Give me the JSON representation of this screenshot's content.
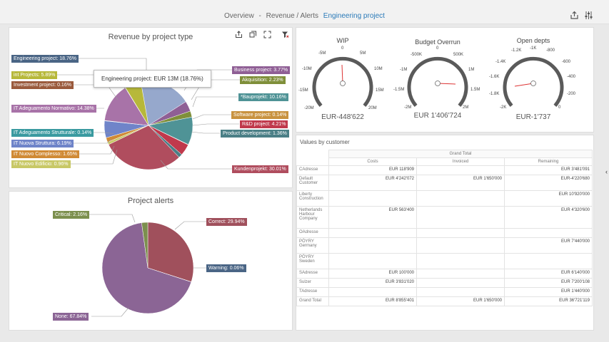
{
  "header": {
    "breadcrumb_1": "Overview",
    "breadcrumb_2": "Revenue / Alerts",
    "breadcrumb_active": "Engineering project",
    "separator": "-"
  },
  "revenue_chart": {
    "title": "Revenue by project type",
    "tooltip": "Engineering project: EUR 13M (18.76%)",
    "labels": {
      "engineering": "Engineering project: 18.76%",
      "int": "int Projects: 5.89%",
      "investment": "Investment project: 0.16%",
      "adeguamento_normativo": "IT Adeguamento Normativo: 14.38%",
      "adeguamento_strutturale": "IT Adeguamento Strutturale: 0.14%",
      "nuova_struttura": "IT Nuova Struttura: 6.19%",
      "nuovo_complesso": "IT Nuovo Complesso: 1.65%",
      "nuovo_edificio": "IT Nuovo Edificio: 0.96%",
      "business": "Business project: 3.77%",
      "akquisition": "Akquisition: 2.23%",
      "bauprojekt": "*Bauprojekt: 10.16%",
      "software": "Software project: 0.14%",
      "rnd": "R&D project: 4.21%",
      "product_dev": "Product development: 1.36%",
      "kunden": "Kundenprojekt: 30.01%"
    }
  },
  "alerts_chart": {
    "title": "Project alerts",
    "labels": {
      "critical": "Critical: 2.16%",
      "correct": "Correct: 29.94%",
      "warning": "Warning: 0.06%",
      "none": "None: 67.84%"
    }
  },
  "gauges": {
    "wip": {
      "title": "WIP",
      "value": "EUR-448'622",
      "ticks": {
        "t0": "-20M",
        "t1": "-15M",
        "t2": "-10M",
        "t3": "-5M",
        "t4": "0",
        "t5": "5M",
        "t6": "10M",
        "t7": "15M",
        "t8": "20M"
      }
    },
    "budget": {
      "title": "Budget Overrun",
      "value": "EUR 1'406'724",
      "ticks": {
        "t0": "-2M",
        "t1": "-1.5M",
        "t2": "-1M",
        "t3": "-500K",
        "t4": "0",
        "t5": "500K",
        "t6": "1M",
        "t7": "1.5M",
        "t8": "2M"
      }
    },
    "open": {
      "title": "Open depts",
      "value": "EUR-1'737",
      "ticks": {
        "t0": "-2K",
        "t1": "-1.8K",
        "t2": "-1.6K",
        "t3": "-1.4K",
        "t4": "-1.2K",
        "t5": "-1K",
        "t6": "-800",
        "t7": "-600",
        "t8": "-400",
        "t9": "-200",
        "t10": "0"
      }
    }
  },
  "values_table": {
    "title": "Values by customer",
    "grand_total_header": "Grand Total",
    "col_costs": "Costs",
    "col_invoiced": "Invoiced",
    "col_remaining": "Remaining",
    "rows": [
      {
        "name": "CAdresse",
        "costs": "EUR 118'909",
        "invoiced": "",
        "remaining": "EUR 3'481'091"
      },
      {
        "name": "Default Customer",
        "costs": "EUR 4'242'072",
        "invoiced": "EUR 1'650'000",
        "remaining": "EUR-4'220'680"
      },
      {
        "name": "Liberty Construction",
        "costs": "",
        "invoiced": "",
        "remaining": "EUR 10'920'000"
      },
      {
        "name": "Netherlands Harbour Company",
        "costs": "EUR 563'400",
        "invoiced": "",
        "remaining": "EUR 4'320'600"
      },
      {
        "name": "OAdresse",
        "costs": "",
        "invoiced": "",
        "remaining": ""
      },
      {
        "name": "PÖYRY Germany",
        "costs": "",
        "invoiced": "",
        "remaining": "EUR 7'440'000"
      },
      {
        "name": "PÖYRY Sweden",
        "costs": "",
        "invoiced": "",
        "remaining": ""
      },
      {
        "name": "SAdresse",
        "costs": "EUR 100'000",
        "invoiced": "",
        "remaining": "EUR 6'140'000"
      },
      {
        "name": "Sulzer",
        "costs": "EUR 3'831'020",
        "invoiced": "",
        "remaining": "EUR 7'200'108"
      },
      {
        "name": "TAdresse",
        "costs": "",
        "invoiced": "",
        "remaining": "EUR 1'440'000"
      },
      {
        "name": "Grand Total",
        "costs": "EUR 8'855'401",
        "invoiced": "EUR 1'650'000",
        "remaining": "EUR 36'721'119"
      }
    ]
  },
  "colors": {
    "engineering": "#96a8cc",
    "int": "#b7b83a",
    "investment": "#9a5a3c",
    "adeguamento_normativo": "#a873a8",
    "adeguamento_strutturale": "#3a9aa0",
    "nuova_struttura": "#6f84c9",
    "nuovo_complesso": "#d08a35",
    "nuovo_edificio": "#c8c866",
    "business": "#8f5f95",
    "akquisition": "#7f8f3a",
    "bauprojekt": "#4f9396",
    "software": "#c8923f",
    "rnd": "#c0394c",
    "product_dev": "#4a7f86",
    "kunden": "#b04d5e",
    "alert_critical": "#7c8f4e",
    "alert_correct": "#a0505c",
    "alert_warning": "#4a6585",
    "alert_none": "#8b6595"
  }
}
